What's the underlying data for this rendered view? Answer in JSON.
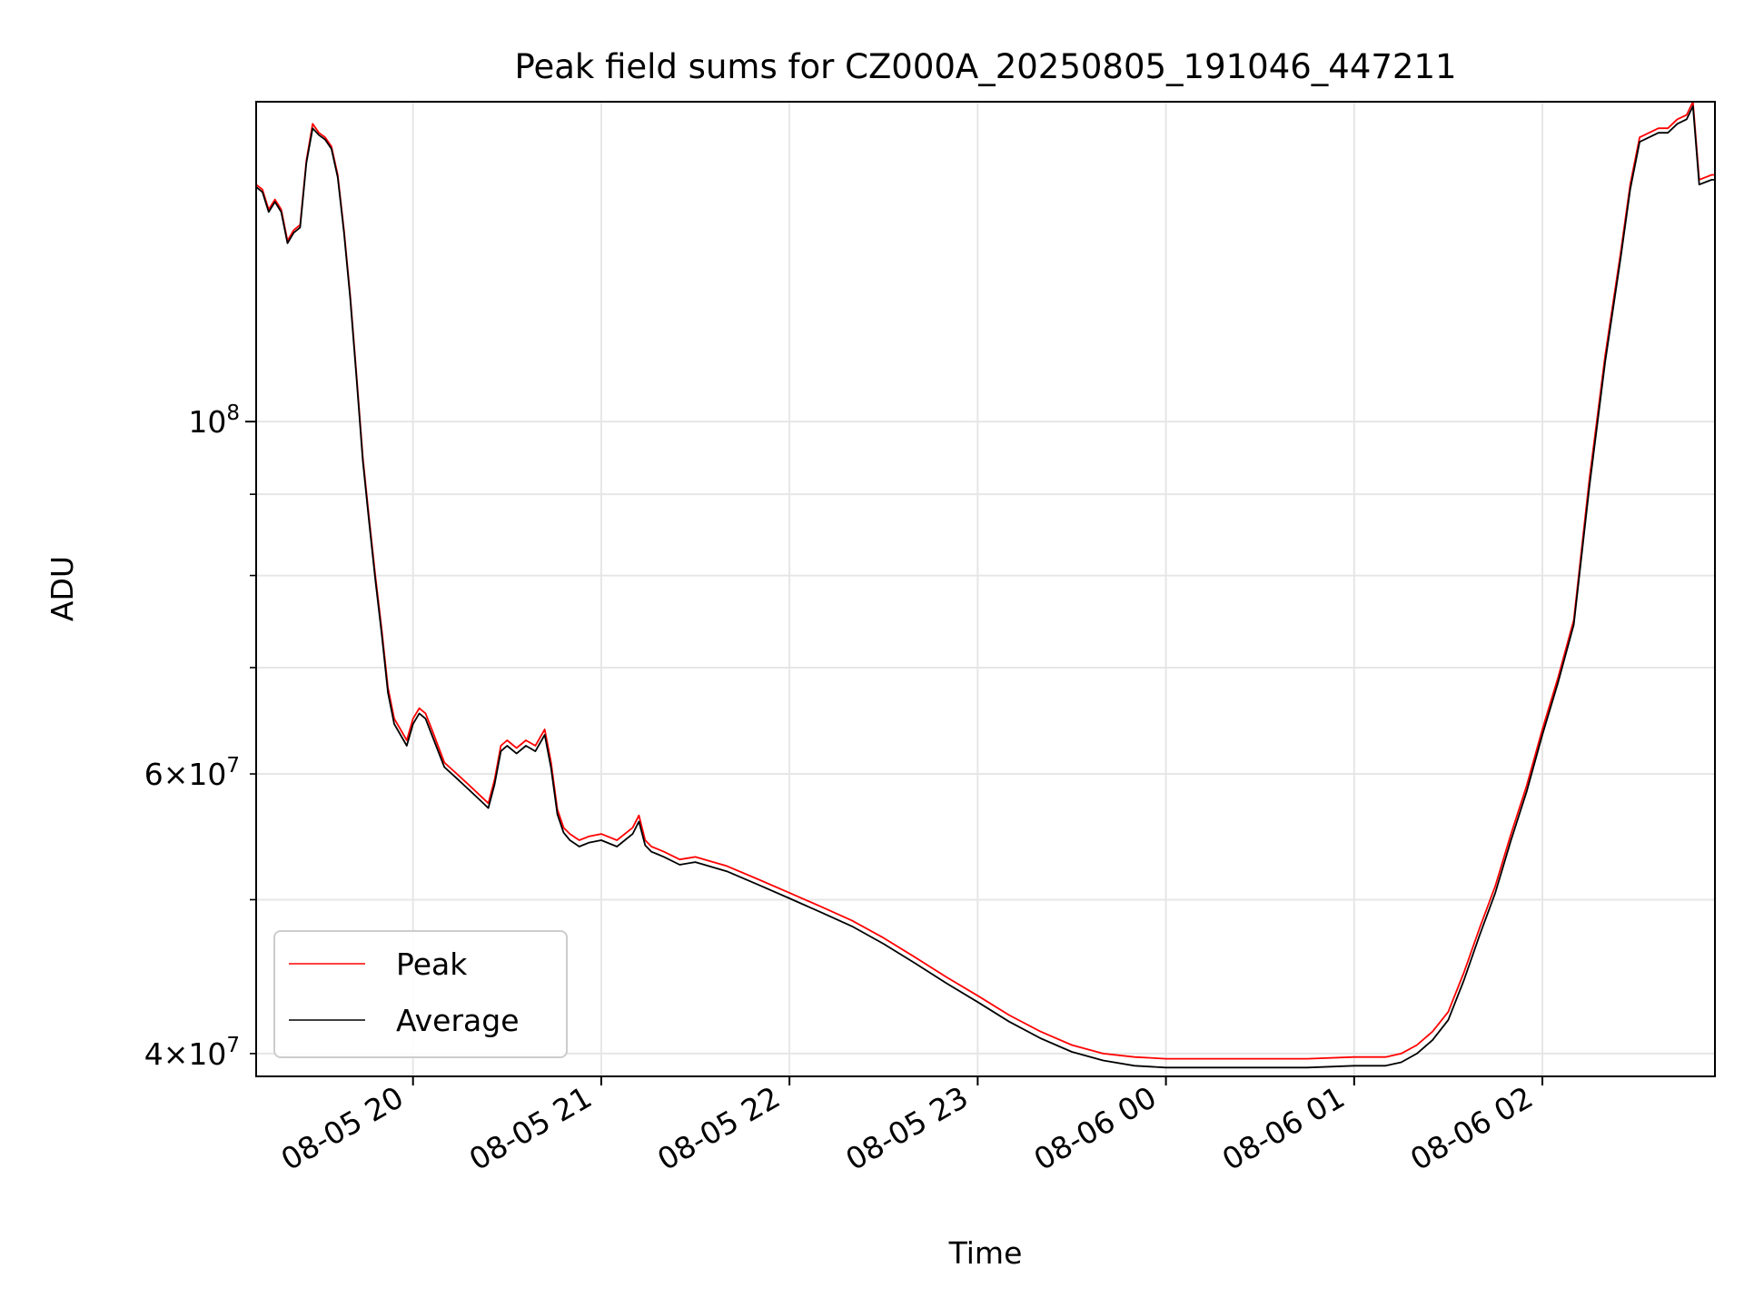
{
  "chart_data": {
    "type": "line",
    "title": "Peak field sums for CZ000A_20250805_191046_447211",
    "xlabel": "Time",
    "ylabel": "ADU",
    "yscale": "log",
    "grid": true,
    "legend_position": "lower-left",
    "x_range": [
      "2025-08-05T19:10",
      "2025-08-06T02:55"
    ],
    "y_range": [
      38700000,
      159000000
    ],
    "x_ticks": [
      {
        "value": "2025-08-05T20:00",
        "label": "08-05 20"
      },
      {
        "value": "2025-08-05T21:00",
        "label": "08-05 21"
      },
      {
        "value": "2025-08-05T22:00",
        "label": "08-05 22"
      },
      {
        "value": "2025-08-05T23:00",
        "label": "08-05 23"
      },
      {
        "value": "2025-08-06T00:00",
        "label": "08-06 00"
      },
      {
        "value": "2025-08-06T01:00",
        "label": "08-06 01"
      },
      {
        "value": "2025-08-06T02:00",
        "label": "08-06 02"
      }
    ],
    "y_major_ticks": [
      {
        "value": 100000000,
        "base": "10",
        "exp": "8"
      }
    ],
    "y_minor_labeled_ticks": [
      {
        "value": 40000000,
        "mant": "4",
        "base": "10",
        "exp": "7"
      },
      {
        "value": 60000000,
        "mant": "6",
        "base": "10",
        "exp": "7"
      }
    ],
    "y_minor_ticks": [
      50000000,
      70000000,
      80000000,
      90000000
    ],
    "series": [
      {
        "name": "Peak",
        "color": "#ff0000",
        "x": [
          "2025-08-05T19:10",
          "2025-08-05T19:12",
          "2025-08-05T19:14",
          "2025-08-05T19:16",
          "2025-08-05T19:18",
          "2025-08-05T19:20",
          "2025-08-05T19:22",
          "2025-08-05T19:24",
          "2025-08-05T19:26",
          "2025-08-05T19:28",
          "2025-08-05T19:30",
          "2025-08-05T19:32",
          "2025-08-05T19:34",
          "2025-08-05T19:36",
          "2025-08-05T19:38",
          "2025-08-05T19:40",
          "2025-08-05T19:42",
          "2025-08-05T19:44",
          "2025-08-05T19:46",
          "2025-08-05T19:48",
          "2025-08-05T19:50",
          "2025-08-05T19:52",
          "2025-08-05T19:54",
          "2025-08-05T19:56",
          "2025-08-05T19:58",
          "2025-08-05T20:00",
          "2025-08-05T20:02",
          "2025-08-05T20:04",
          "2025-08-05T20:06",
          "2025-08-05T20:10",
          "2025-08-05T20:14",
          "2025-08-05T20:18",
          "2025-08-05T20:22",
          "2025-08-05T20:24",
          "2025-08-05T20:26",
          "2025-08-05T20:28",
          "2025-08-05T20:30",
          "2025-08-05T20:33",
          "2025-08-05T20:36",
          "2025-08-05T20:39",
          "2025-08-05T20:42",
          "2025-08-05T20:44",
          "2025-08-05T20:46",
          "2025-08-05T20:48",
          "2025-08-05T20:50",
          "2025-08-05T20:53",
          "2025-08-05T20:56",
          "2025-08-05T21:00",
          "2025-08-05T21:05",
          "2025-08-05T21:10",
          "2025-08-05T21:12",
          "2025-08-05T21:14",
          "2025-08-05T21:16",
          "2025-08-05T21:18",
          "2025-08-05T21:20",
          "2025-08-05T21:25",
          "2025-08-05T21:30",
          "2025-08-05T21:40",
          "2025-08-05T21:50",
          "2025-08-05T22:00",
          "2025-08-05T22:10",
          "2025-08-05T22:20",
          "2025-08-05T22:30",
          "2025-08-05T22:40",
          "2025-08-05T22:50",
          "2025-08-05T23:00",
          "2025-08-05T23:10",
          "2025-08-05T23:20",
          "2025-08-05T23:30",
          "2025-08-05T23:40",
          "2025-08-05T23:50",
          "2025-08-06T00:00",
          "2025-08-06T00:15",
          "2025-08-06T00:30",
          "2025-08-06T00:45",
          "2025-08-06T01:00",
          "2025-08-06T01:10",
          "2025-08-06T01:15",
          "2025-08-06T01:20",
          "2025-08-06T01:25",
          "2025-08-06T01:30",
          "2025-08-06T01:35",
          "2025-08-06T01:40",
          "2025-08-06T01:45",
          "2025-08-06T01:50",
          "2025-08-06T01:55",
          "2025-08-06T02:00",
          "2025-08-06T02:05",
          "2025-08-06T02:10",
          "2025-08-06T02:15",
          "2025-08-06T02:20",
          "2025-08-06T02:25",
          "2025-08-06T02:28",
          "2025-08-06T02:31",
          "2025-08-06T02:34",
          "2025-08-06T02:37",
          "2025-08-06T02:40",
          "2025-08-06T02:43",
          "2025-08-06T02:46",
          "2025-08-06T02:48",
          "2025-08-06T02:50",
          "2025-08-06T02:52",
          "2025-08-06T02:54",
          "2025-08-06T02:55"
        ],
        "y": [
          141000000,
          140000000,
          136000000,
          138000000,
          136000000,
          130000000,
          132000000,
          133000000,
          146000000,
          154000000,
          152000000,
          151000000,
          149000000,
          143000000,
          132000000,
          120000000,
          107000000,
          95000000,
          87000000,
          80000000,
          74000000,
          68000000,
          65000000,
          64000000,
          63000000,
          65000000,
          66000000,
          65500000,
          64000000,
          61000000,
          60000000,
          59000000,
          58000000,
          57500000,
          59500000,
          62500000,
          63000000,
          62300000,
          63000000,
          62500000,
          64000000,
          61000000,
          57000000,
          55500000,
          55000000,
          54500000,
          54800000,
          55000000,
          54500000,
          55500000,
          56500000,
          54500000,
          54000000,
          53800000,
          53600000,
          53000000,
          53200000,
          52500000,
          51500000,
          50500000,
          49500000,
          48500000,
          47300000,
          46000000,
          44700000,
          43500000,
          42300000,
          41300000,
          40500000,
          40000000,
          39800000,
          39700000,
          39700000,
          39700000,
          39700000,
          39800000,
          39800000,
          40000000,
          40500000,
          41300000,
          42500000,
          45000000,
          48000000,
          51000000,
          55000000,
          59000000,
          64000000,
          69000000,
          75000000,
          92000000,
          110000000,
          128000000,
          141000000,
          151000000,
          152000000,
          153000000,
          153000000,
          155000000,
          156000000,
          159000000,
          142000000,
          142500000,
          143000000,
          143000000
        ]
      },
      {
        "name": "Average",
        "color": "#000000",
        "x": [
          "2025-08-05T19:10",
          "2025-08-05T19:12",
          "2025-08-05T19:14",
          "2025-08-05T19:16",
          "2025-08-05T19:18",
          "2025-08-05T19:20",
          "2025-08-05T19:22",
          "2025-08-05T19:24",
          "2025-08-05T19:26",
          "2025-08-05T19:28",
          "2025-08-05T19:30",
          "2025-08-05T19:32",
          "2025-08-05T19:34",
          "2025-08-05T19:36",
          "2025-08-05T19:38",
          "2025-08-05T19:40",
          "2025-08-05T19:42",
          "2025-08-05T19:44",
          "2025-08-05T19:46",
          "2025-08-05T19:48",
          "2025-08-05T19:50",
          "2025-08-05T19:52",
          "2025-08-05T19:54",
          "2025-08-05T19:56",
          "2025-08-05T19:58",
          "2025-08-05T20:00",
          "2025-08-05T20:02",
          "2025-08-05T20:04",
          "2025-08-05T20:06",
          "2025-08-05T20:10",
          "2025-08-05T20:14",
          "2025-08-05T20:18",
          "2025-08-05T20:22",
          "2025-08-05T20:24",
          "2025-08-05T20:26",
          "2025-08-05T20:28",
          "2025-08-05T20:30",
          "2025-08-05T20:33",
          "2025-08-05T20:36",
          "2025-08-05T20:39",
          "2025-08-05T20:42",
          "2025-08-05T20:44",
          "2025-08-05T20:46",
          "2025-08-05T20:48",
          "2025-08-05T20:50",
          "2025-08-05T20:53",
          "2025-08-05T20:56",
          "2025-08-05T21:00",
          "2025-08-05T21:05",
          "2025-08-05T21:10",
          "2025-08-05T21:12",
          "2025-08-05T21:14",
          "2025-08-05T21:16",
          "2025-08-05T21:18",
          "2025-08-05T21:20",
          "2025-08-05T21:25",
          "2025-08-05T21:30",
          "2025-08-05T21:40",
          "2025-08-05T21:50",
          "2025-08-05T22:00",
          "2025-08-05T22:10",
          "2025-08-05T22:20",
          "2025-08-05T22:30",
          "2025-08-05T22:40",
          "2025-08-05T22:50",
          "2025-08-05T23:00",
          "2025-08-05T23:10",
          "2025-08-05T23:20",
          "2025-08-05T23:30",
          "2025-08-05T23:40",
          "2025-08-05T23:50",
          "2025-08-06T00:00",
          "2025-08-06T00:15",
          "2025-08-06T00:30",
          "2025-08-06T00:45",
          "2025-08-06T01:00",
          "2025-08-06T01:10",
          "2025-08-06T01:15",
          "2025-08-06T01:20",
          "2025-08-06T01:25",
          "2025-08-06T01:30",
          "2025-08-06T01:35",
          "2025-08-06T01:40",
          "2025-08-06T01:45",
          "2025-08-06T01:50",
          "2025-08-06T01:55",
          "2025-08-06T02:00",
          "2025-08-06T02:05",
          "2025-08-06T02:10",
          "2025-08-06T02:15",
          "2025-08-06T02:20",
          "2025-08-06T02:25",
          "2025-08-06T02:28",
          "2025-08-06T02:31",
          "2025-08-06T02:34",
          "2025-08-06T02:37",
          "2025-08-06T02:40",
          "2025-08-06T02:43",
          "2025-08-06T02:46",
          "2025-08-06T02:48",
          "2025-08-06T02:50",
          "2025-08-06T02:52",
          "2025-08-06T02:54",
          "2025-08-06T02:55"
        ],
        "y": [
          140500000,
          139500000,
          135500000,
          137500000,
          135500000,
          129500000,
          131500000,
          132500000,
          145500000,
          153000000,
          151500000,
          150500000,
          148500000,
          142500000,
          131500000,
          119500000,
          106500000,
          94500000,
          86500000,
          79500000,
          73500000,
          67500000,
          64500000,
          63500000,
          62500000,
          64500000,
          65500000,
          65000000,
          63500000,
          60600000,
          59600000,
          58600000,
          57600000,
          57100000,
          59100000,
          62000000,
          62500000,
          61800000,
          62500000,
          62000000,
          63500000,
          60500000,
          56600000,
          55100000,
          54500000,
          54000000,
          54300000,
          54500000,
          54000000,
          55000000,
          56000000,
          54100000,
          53600000,
          53400000,
          53200000,
          52600000,
          52800000,
          52100000,
          51100000,
          50100000,
          49100000,
          48100000,
          46900000,
          45600000,
          44300000,
          43100000,
          41900000,
          40900000,
          40100000,
          39600000,
          39300000,
          39200000,
          39200000,
          39200000,
          39200000,
          39300000,
          39300000,
          39500000,
          40000000,
          40800000,
          42000000,
          44500000,
          47500000,
          50500000,
          54500000,
          58500000,
          63500000,
          68500000,
          74500000,
          91000000,
          109000000,
          127000000,
          140000000,
          150000000,
          151000000,
          152000000,
          152000000,
          154000000,
          155000000,
          158000000,
          141000000,
          141500000,
          142000000,
          142000000
        ]
      }
    ]
  }
}
